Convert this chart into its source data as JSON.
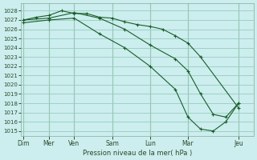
{
  "xlabel": "Pression niveau de la mer( hPa )",
  "bg_color": "#cceeee",
  "grid_color": "#99ccbb",
  "line_color": "#1a5c2a",
  "ylim": [
    1014.5,
    1028.8
  ],
  "yticks": [
    1015,
    1016,
    1017,
    1018,
    1019,
    1020,
    1021,
    1022,
    1023,
    1024,
    1025,
    1026,
    1027,
    1028
  ],
  "day_labels": [
    "Dim",
    "Mer",
    "Ven",
    "Sam",
    "Lun",
    "Mar",
    "Jeu"
  ],
  "day_positions": [
    0,
    2,
    4,
    7,
    10,
    13,
    17
  ],
  "xlim": [
    -0.2,
    18.2
  ],
  "num_xcols": 18,
  "series": [
    {
      "x": [
        0,
        1,
        2,
        3,
        4,
        5,
        6,
        7,
        8,
        9,
        10,
        11,
        12,
        13,
        14,
        15,
        16,
        17
      ],
      "y": [
        1027.0,
        1027.3,
        1027.5,
        1028.0,
        1027.7,
        1027.7,
        1027.3,
        1027.2,
        1026.8,
        1026.5,
        1026.3,
        1026.0,
        1025.3,
        1024.5,
        1023.0,
        null,
        null,
        1017.5
      ]
    },
    {
      "x": [
        0,
        1,
        2,
        3,
        4,
        5,
        6,
        7,
        8,
        9,
        10,
        11,
        12,
        13,
        14,
        15,
        16,
        17
      ],
      "y": [
        1027.0,
        null,
        1027.2,
        null,
        1027.8,
        null,
        1027.2,
        null,
        1026.0,
        null,
        1024.3,
        null,
        1022.8,
        1021.5,
        1019.0,
        1016.8,
        1016.5,
        1018.0
      ]
    },
    {
      "x": [
        0,
        1,
        2,
        3,
        4,
        5,
        6,
        7,
        8,
        9,
        10,
        11,
        12,
        13,
        14,
        15,
        16,
        17
      ],
      "y": [
        1026.7,
        null,
        1027.0,
        null,
        1027.2,
        null,
        1025.5,
        null,
        1024.0,
        null,
        1022.0,
        null,
        1019.5,
        1016.5,
        1015.2,
        1015.0,
        1016.0,
        1018.0
      ]
    }
  ]
}
